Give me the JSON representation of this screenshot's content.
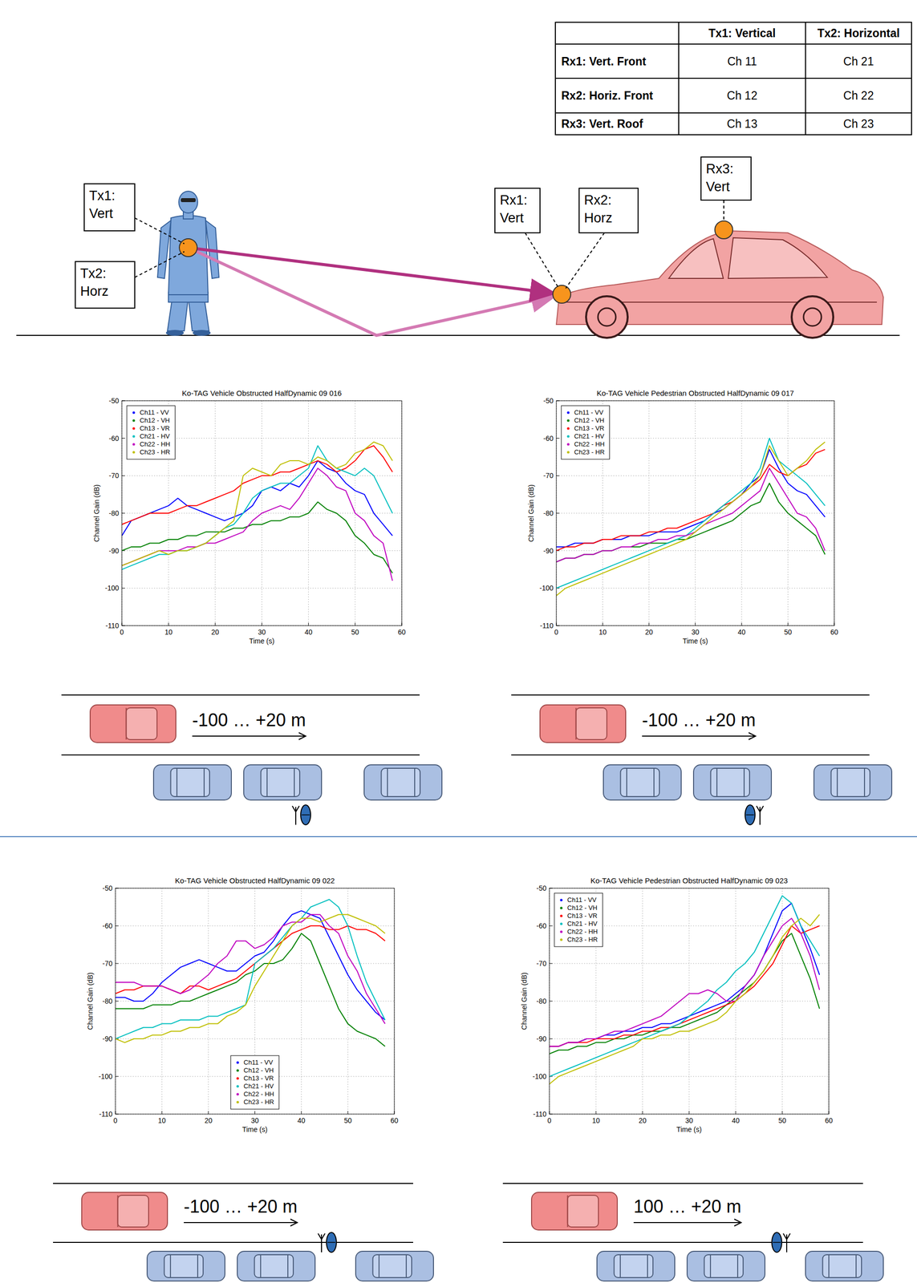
{
  "table": {
    "columns": [
      "Tx1: Vertical",
      "Tx2: Horizontal"
    ],
    "rows": [
      {
        "label": "Rx1: Vert. Front",
        "cells": [
          "Ch 11",
          "Ch 21"
        ]
      },
      {
        "label": "Rx2: Horiz. Front",
        "cells": [
          "Ch 12",
          "Ch 22"
        ]
      },
      {
        "label": "Rx3: Vert. Roof",
        "cells": [
          "Ch 13",
          "Ch 23"
        ]
      }
    ]
  },
  "diagram": {
    "labels": [
      {
        "lines": [
          "Tx1:",
          "Vert"
        ]
      },
      {
        "lines": [
          "Tx2:",
          "Horz"
        ]
      },
      {
        "lines": [
          "Rx1:",
          "Vert"
        ]
      },
      {
        "lines": [
          "Rx2:",
          "Horz"
        ]
      },
      {
        "lines": [
          "Rx3:",
          "Vert"
        ]
      }
    ]
  },
  "chart_data": [
    {
      "type": "line",
      "title": "Ko-TAG Vehicle Obstructed HalfDynamic 09 016",
      "x_label": "Time (s)",
      "y_label": "Channel Gain (dB)",
      "grid": true,
      "legend": "upper left",
      "xlim": [
        0,
        60
      ],
      "xticks": [
        0,
        10,
        20,
        30,
        40,
        50,
        60
      ],
      "ylim": [
        -110,
        -50
      ],
      "yticks": [
        -110,
        -100,
        -90,
        -80,
        -70,
        -60,
        -50
      ],
      "x": [
        0,
        2,
        4,
        6,
        8,
        10,
        12,
        14,
        16,
        18,
        20,
        22,
        24,
        26,
        28,
        30,
        32,
        34,
        36,
        38,
        40,
        42,
        44,
        46,
        48,
        50,
        52,
        54,
        56,
        58
      ],
      "series": [
        {
          "name": "Ch11 - VV",
          "color": "#0000ff",
          "values": [
            -86,
            -82,
            -81,
            -80,
            -79,
            -78,
            -76,
            -78,
            -79,
            -80,
            -81,
            -82,
            -81,
            -80,
            -78,
            -74,
            -73,
            -74,
            -72,
            -73,
            -70,
            -66,
            -68,
            -69,
            -72,
            -74,
            -75,
            -80,
            -83,
            -86
          ]
        },
        {
          "name": "Ch12 - VH",
          "color": "#008000",
          "values": [
            -90,
            -89,
            -89,
            -88,
            -88,
            -87,
            -87,
            -86,
            -86,
            -85,
            -85,
            -85,
            -84,
            -84,
            -83,
            -83,
            -82,
            -82,
            -81,
            -81,
            -80,
            -77,
            -79,
            -80,
            -82,
            -86,
            -88,
            -91,
            -92,
            -96
          ]
        },
        {
          "name": "Ch13 - VR",
          "color": "#ff0000",
          "values": [
            -83,
            -82,
            -81,
            -80,
            -80,
            -80,
            -79,
            -78,
            -78,
            -77,
            -76,
            -75,
            -74,
            -72,
            -71,
            -70,
            -70,
            -69,
            -69,
            -68,
            -67,
            -66,
            -67,
            -69,
            -68,
            -66,
            -63,
            -62,
            -65,
            -69
          ]
        },
        {
          "name": "Ch21 - HV",
          "color": "#00bfbf",
          "values": [
            -95,
            -94,
            -93,
            -92,
            -91,
            -91,
            -90,
            -90,
            -89,
            -88,
            -86,
            -84,
            -83,
            -80,
            -76,
            -74,
            -73,
            -72,
            -72,
            -70,
            -68,
            -62,
            -66,
            -68,
            -69,
            -70,
            -68,
            -70,
            -75,
            -80
          ]
        },
        {
          "name": "Ch22 - HH",
          "color": "#bf00bf",
          "values": [
            -94,
            -93,
            -92,
            -91,
            -90,
            -90,
            -90,
            -89,
            -89,
            -88,
            -88,
            -87,
            -86,
            -85,
            -82,
            -80,
            -79,
            -78,
            -79,
            -76,
            -72,
            -68,
            -70,
            -73,
            -74,
            -80,
            -82,
            -86,
            -88,
            -98
          ]
        },
        {
          "name": "Ch23 - HR",
          "color": "#bfbf00",
          "values": [
            -94,
            -93,
            -92,
            -91,
            -90,
            -91,
            -90,
            -90,
            -89,
            -88,
            -86,
            -84,
            -82,
            -70,
            -68,
            -69,
            -70,
            -67,
            -66,
            -66,
            -67,
            -65,
            -66,
            -68,
            -67,
            -64,
            -63,
            -61,
            -62,
            -66
          ]
        }
      ]
    },
    {
      "type": "line",
      "title": "Ko-TAG Vehicle Pedestrian Obstructed HalfDynamic 09 017",
      "x_label": "Time (s)",
      "y_label": "Channel Gain (dB)",
      "grid": true,
      "legend": "upper left",
      "xlim": [
        0,
        60
      ],
      "xticks": [
        0,
        10,
        20,
        30,
        40,
        50,
        60
      ],
      "ylim": [
        -110,
        -50
      ],
      "yticks": [
        -110,
        -100,
        -90,
        -80,
        -70,
        -60,
        -50
      ],
      "x": [
        0,
        2,
        4,
        6,
        8,
        10,
        12,
        14,
        16,
        18,
        20,
        22,
        24,
        26,
        28,
        30,
        32,
        34,
        36,
        38,
        40,
        42,
        44,
        46,
        48,
        50,
        52,
        54,
        56,
        58
      ],
      "series": [
        {
          "name": "Ch11 - VV",
          "color": "#0000ff",
          "values": [
            -89,
            -89,
            -88,
            -88,
            -88,
            -87,
            -87,
            -87,
            -86,
            -86,
            -86,
            -85,
            -85,
            -85,
            -84,
            -83,
            -82,
            -80,
            -79,
            -77,
            -75,
            -72,
            -70,
            -63,
            -68,
            -72,
            -74,
            -75,
            -78,
            -81
          ]
        },
        {
          "name": "Ch12 - VH",
          "color": "#008000",
          "values": [
            -93,
            -92,
            -92,
            -91,
            -91,
            -90,
            -90,
            -89,
            -89,
            -89,
            -88,
            -88,
            -88,
            -87,
            -87,
            -86,
            -85,
            -84,
            -83,
            -82,
            -80,
            -78,
            -77,
            -72,
            -77,
            -80,
            -82,
            -84,
            -86,
            -91
          ]
        },
        {
          "name": "Ch13 - VR",
          "color": "#ff0000",
          "values": [
            -90,
            -89,
            -89,
            -88,
            -88,
            -87,
            -87,
            -86,
            -86,
            -86,
            -85,
            -85,
            -84,
            -84,
            -83,
            -82,
            -81,
            -80,
            -78,
            -77,
            -75,
            -73,
            -71,
            -67,
            -69,
            -70,
            -68,
            -67,
            -64,
            -63
          ]
        },
        {
          "name": "Ch21 - HV",
          "color": "#00bfbf",
          "values": [
            -100,
            -99,
            -98,
            -97,
            -96,
            -95,
            -94,
            -93,
            -92,
            -91,
            -90,
            -89,
            -88,
            -87,
            -86,
            -84,
            -82,
            -80,
            -78,
            -76,
            -74,
            -72,
            -68,
            -60,
            -66,
            -68,
            -70,
            -72,
            -75,
            -78
          ]
        },
        {
          "name": "Ch22 - HH",
          "color": "#bf00bf",
          "values": [
            -93,
            -92,
            -92,
            -91,
            -91,
            -90,
            -90,
            -89,
            -89,
            -88,
            -88,
            -87,
            -87,
            -86,
            -86,
            -85,
            -83,
            -82,
            -81,
            -80,
            -78,
            -76,
            -74,
            -68,
            -72,
            -76,
            -80,
            -81,
            -84,
            -90
          ]
        },
        {
          "name": "Ch23 - HR",
          "color": "#bfbf00",
          "values": [
            -102,
            -100,
            -99,
            -98,
            -97,
            -96,
            -95,
            -94,
            -93,
            -92,
            -91,
            -90,
            -89,
            -88,
            -87,
            -85,
            -83,
            -81,
            -79,
            -77,
            -75,
            -73,
            -70,
            -62,
            -66,
            -70,
            -68,
            -66,
            -63,
            -61
          ]
        }
      ]
    },
    {
      "type": "line",
      "title": "Ko-TAG Vehicle Obstructed HalfDynamic 09 022",
      "x_label": "Time (s)",
      "y_label": "Channel Gain (dB)",
      "grid": true,
      "legend": "lower center",
      "xlim": [
        0,
        60
      ],
      "xticks": [
        0,
        10,
        20,
        30,
        40,
        50,
        60
      ],
      "ylim": [
        -110,
        -50
      ],
      "yticks": [
        -110,
        -100,
        -90,
        -80,
        -70,
        -60,
        -50
      ],
      "x": [
        0,
        2,
        4,
        6,
        8,
        10,
        12,
        14,
        16,
        18,
        20,
        22,
        24,
        26,
        28,
        30,
        32,
        34,
        36,
        38,
        40,
        42,
        44,
        46,
        48,
        50,
        52,
        54,
        56,
        58
      ],
      "series": [
        {
          "name": "Ch11 - VV",
          "color": "#0000ff",
          "values": [
            -79,
            -79,
            -80,
            -80,
            -78,
            -75,
            -73,
            -71,
            -70,
            -69,
            -70,
            -71,
            -72,
            -72,
            -70,
            -68,
            -67,
            -64,
            -60,
            -57,
            -56,
            -57,
            -58,
            -63,
            -68,
            -73,
            -77,
            -80,
            -83,
            -85
          ]
        },
        {
          "name": "Ch12 - VH",
          "color": "#008000",
          "values": [
            -82,
            -82,
            -82,
            -82,
            -81,
            -81,
            -81,
            -80,
            -80,
            -79,
            -78,
            -77,
            -76,
            -75,
            -73,
            -72,
            -70,
            -70,
            -69,
            -66,
            -62,
            -64,
            -70,
            -76,
            -82,
            -86,
            -88,
            -89,
            -90,
            -92
          ]
        },
        {
          "name": "Ch13 - VR",
          "color": "#ff0000",
          "values": [
            -78,
            -77,
            -77,
            -76,
            -76,
            -76,
            -77,
            -78,
            -76,
            -76,
            -77,
            -76,
            -75,
            -74,
            -72,
            -70,
            -68,
            -66,
            -64,
            -62,
            -61,
            -60,
            -60,
            -61,
            -61,
            -60,
            -61,
            -61,
            -62,
            -64
          ]
        },
        {
          "name": "Ch21 - HV",
          "color": "#00bfbf",
          "values": [
            -90,
            -89,
            -88,
            -87,
            -87,
            -86,
            -86,
            -85,
            -85,
            -85,
            -84,
            -84,
            -83,
            -82,
            -81,
            -70,
            -68,
            -66,
            -63,
            -60,
            -58,
            -55,
            -54,
            -53,
            -55,
            -60,
            -68,
            -75,
            -80,
            -85
          ]
        },
        {
          "name": "Ch22 - HH",
          "color": "#bf00bf",
          "values": [
            -75,
            -75,
            -75,
            -76,
            -76,
            -76,
            -77,
            -78,
            -77,
            -75,
            -73,
            -70,
            -68,
            -64,
            -64,
            -66,
            -65,
            -63,
            -60,
            -59,
            -59,
            -57,
            -57,
            -60,
            -62,
            -68,
            -72,
            -78,
            -82,
            -86
          ]
        },
        {
          "name": "Ch23 - HR",
          "color": "#bfbf00",
          "values": [
            -90,
            -91,
            -90,
            -90,
            -89,
            -89,
            -88,
            -88,
            -87,
            -87,
            -86,
            -86,
            -84,
            -83,
            -81,
            -76,
            -72,
            -68,
            -64,
            -60,
            -58,
            -58,
            -59,
            -58,
            -57,
            -57,
            -58,
            -59,
            -60,
            -62
          ]
        }
      ]
    },
    {
      "type": "line",
      "title": "Ko-TAG Vehicle Pedestrian Obstructed HalfDynamic 09 023",
      "x_label": "Time (s)",
      "y_label": "Channel Gain (dB)",
      "grid": true,
      "legend": "upper left",
      "xlim": [
        0,
        60
      ],
      "xticks": [
        0,
        10,
        20,
        30,
        40,
        50,
        60
      ],
      "ylim": [
        -110,
        -50
      ],
      "yticks": [
        -110,
        -100,
        -90,
        -80,
        -70,
        -60,
        -50
      ],
      "x": [
        0,
        2,
        4,
        6,
        8,
        10,
        12,
        14,
        16,
        18,
        20,
        22,
        24,
        26,
        28,
        30,
        32,
        34,
        36,
        38,
        40,
        42,
        44,
        46,
        48,
        50,
        52,
        54,
        56,
        58
      ],
      "series": [
        {
          "name": "Ch11 - VV",
          "color": "#0000ff",
          "values": [
            -92,
            -92,
            -91,
            -91,
            -90,
            -90,
            -89,
            -89,
            -88,
            -88,
            -87,
            -87,
            -86,
            -86,
            -85,
            -84,
            -83,
            -82,
            -81,
            -80,
            -78,
            -76,
            -73,
            -68,
            -62,
            -56,
            -54,
            -60,
            -66,
            -73
          ]
        },
        {
          "name": "Ch12 - VH",
          "color": "#008000",
          "values": [
            -94,
            -93,
            -93,
            -92,
            -92,
            -91,
            -91,
            -90,
            -90,
            -89,
            -89,
            -88,
            -88,
            -87,
            -87,
            -86,
            -85,
            -84,
            -83,
            -81,
            -79,
            -77,
            -75,
            -72,
            -68,
            -64,
            -62,
            -68,
            -74,
            -82
          ]
        },
        {
          "name": "Ch13 - VR",
          "color": "#ff0000",
          "values": [
            -92,
            -92,
            -91,
            -91,
            -91,
            -90,
            -90,
            -90,
            -89,
            -89,
            -88,
            -88,
            -87,
            -87,
            -86,
            -85,
            -84,
            -83,
            -82,
            -81,
            -80,
            -78,
            -76,
            -73,
            -70,
            -65,
            -60,
            -62,
            -61,
            -60
          ]
        },
        {
          "name": "Ch21 - HV",
          "color": "#00bfbf",
          "values": [
            -100,
            -99,
            -98,
            -97,
            -96,
            -95,
            -94,
            -93,
            -92,
            -91,
            -90,
            -89,
            -88,
            -87,
            -86,
            -84,
            -82,
            -80,
            -77,
            -75,
            -72,
            -70,
            -67,
            -62,
            -57,
            -52,
            -54,
            -60,
            -64,
            -68
          ]
        },
        {
          "name": "Ch22 - HH",
          "color": "#bf00bf",
          "values": [
            -92,
            -92,
            -91,
            -91,
            -90,
            -90,
            -89,
            -88,
            -88,
            -87,
            -86,
            -85,
            -84,
            -82,
            -80,
            -78,
            -78,
            -77,
            -78,
            -80,
            -80,
            -76,
            -73,
            -68,
            -64,
            -60,
            -58,
            -62,
            -68,
            -77
          ]
        },
        {
          "name": "Ch23 - HR",
          "color": "#bfbf00",
          "values": [
            -102,
            -100,
            -99,
            -98,
            -97,
            -96,
            -95,
            -94,
            -93,
            -92,
            -90,
            -90,
            -89,
            -89,
            -88,
            -88,
            -87,
            -86,
            -85,
            -83,
            -80,
            -78,
            -75,
            -72,
            -68,
            -63,
            -60,
            -58,
            -60,
            -57
          ]
        }
      ]
    }
  ],
  "scenarios": [
    {
      "label": "-100 … +20 m"
    },
    {
      "label": "-100 … +20 m"
    },
    {
      "label": "-100 … +20 m"
    },
    {
      "label": "100 … +20 m"
    }
  ]
}
